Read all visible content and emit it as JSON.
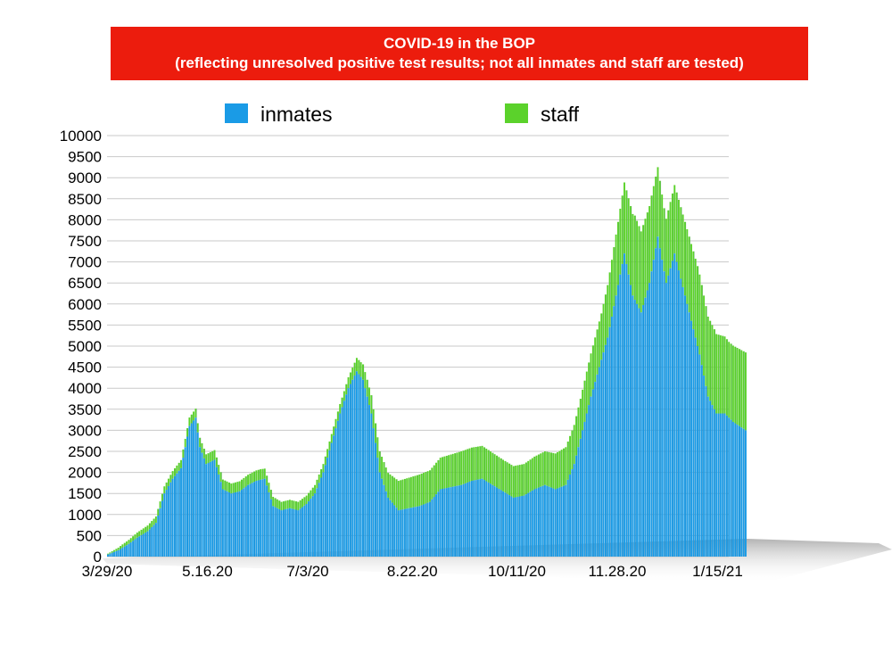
{
  "chart_data": {
    "type": "bar",
    "stacked": true,
    "title": "COVID-19 in the BOP",
    "subtitle": "(reflecting unresolved positive test results; not all inmates and staff are tested)",
    "legend_position": "top",
    "grid": true,
    "ylim": [
      0,
      10000
    ],
    "yticks": [
      "0",
      "500",
      "1000",
      "1500",
      "2000",
      "2500",
      "3000",
      "3500",
      "4000",
      "4500",
      "5000",
      "5500",
      "6000",
      "6500",
      "7000",
      "7500",
      "8000",
      "8500",
      "9000",
      "9500",
      "10000"
    ],
    "xticks": [
      "3/29/20",
      "5.16.20",
      "7/3/20",
      "8.22.20",
      "10/11/20",
      "11.28.20",
      "1/15/21"
    ],
    "x_start": "3/29/20",
    "x_end": "1/28/21",
    "series": [
      {
        "name": "inmates",
        "color": "#1a9be6",
        "points": [
          [
            "3/29/20",
            50
          ],
          [
            "4/3/20",
            150
          ],
          [
            "4/8/20",
            300
          ],
          [
            "4/12/20",
            450
          ],
          [
            "4/17/20",
            600
          ],
          [
            "4/21/20",
            800
          ],
          [
            "4/25/20",
            1500
          ],
          [
            "4/29/20",
            1850
          ],
          [
            "5/3/20",
            2100
          ],
          [
            "5/7/20",
            3100
          ],
          [
            "5/10/20",
            3300
          ],
          [
            "5/12/20",
            2600
          ],
          [
            "5/15/20",
            2200
          ],
          [
            "5/19/20",
            2300
          ],
          [
            "5/23/20",
            1600
          ],
          [
            "5/27/20",
            1500
          ],
          [
            "5/31/20",
            1550
          ],
          [
            "6/4/20",
            1700
          ],
          [
            "6/8/20",
            1800
          ],
          [
            "6/12/20",
            1850
          ],
          [
            "6/16/20",
            1200
          ],
          [
            "6/20/20",
            1100
          ],
          [
            "6/24/20",
            1150
          ],
          [
            "6/28/20",
            1100
          ],
          [
            "7/2/20",
            1250
          ],
          [
            "7/6/20",
            1500
          ],
          [
            "7/10/20",
            2000
          ],
          [
            "7/14/20",
            2700
          ],
          [
            "7/18/20",
            3400
          ],
          [
            "7/22/20",
            4000
          ],
          [
            "7/26/20",
            4400
          ],
          [
            "7/29/20",
            4200
          ],
          [
            "8/2/20",
            3400
          ],
          [
            "8/6/20",
            2000
          ],
          [
            "8/10/20",
            1400
          ],
          [
            "8/15/20",
            1100
          ],
          [
            "8/20/20",
            1150
          ],
          [
            "8/25/20",
            1200
          ],
          [
            "8/30/20",
            1300
          ],
          [
            "9/4/20",
            1600
          ],
          [
            "9/9/20",
            1650
          ],
          [
            "9/14/20",
            1700
          ],
          [
            "9/19/20",
            1800
          ],
          [
            "9/24/20",
            1850
          ],
          [
            "9/29/20",
            1700
          ],
          [
            "10/4/20",
            1550
          ],
          [
            "10/9/20",
            1400
          ],
          [
            "10/14/20",
            1450
          ],
          [
            "10/19/20",
            1600
          ],
          [
            "10/24/20",
            1700
          ],
          [
            "10/29/20",
            1600
          ],
          [
            "11/3/20",
            1700
          ],
          [
            "11/7/20",
            2200
          ],
          [
            "11/11/20",
            3000
          ],
          [
            "11/15/20",
            3800
          ],
          [
            "11/19/20",
            4500
          ],
          [
            "11/23/20",
            5200
          ],
          [
            "11/27/20",
            6200
          ],
          [
            "12/1/20",
            7200
          ],
          [
            "12/5/20",
            6200
          ],
          [
            "12/9/20",
            5800
          ],
          [
            "12/13/20",
            6500
          ],
          [
            "12/17/20",
            7600
          ],
          [
            "12/21/20",
            6500
          ],
          [
            "12/25/20",
            7200
          ],
          [
            "12/29/20",
            6400
          ],
          [
            "1/2/21",
            5600
          ],
          [
            "1/6/21",
            4800
          ],
          [
            "1/10/21",
            3800
          ],
          [
            "1/14/21",
            3400
          ],
          [
            "1/18/21",
            3400
          ],
          [
            "1/22/21",
            3200
          ],
          [
            "1/28/21",
            3000
          ]
        ]
      },
      {
        "name": "staff",
        "color": "#5bd22b",
        "points": [
          [
            "3/29/20",
            20
          ],
          [
            "4/5/20",
            80
          ],
          [
            "4/12/20",
            120
          ],
          [
            "4/20/20",
            150
          ],
          [
            "4/28/20",
            180
          ],
          [
            "5/6/20",
            200
          ],
          [
            "5/14/20",
            230
          ],
          [
            "5/22/20",
            230
          ],
          [
            "5/31/20",
            240
          ],
          [
            "6/10/20",
            250
          ],
          [
            "6/20/20",
            200
          ],
          [
            "6/30/20",
            200
          ],
          [
            "7/10/20",
            200
          ],
          [
            "7/20/20",
            230
          ],
          [
            "7/28/20",
            350
          ],
          [
            "8/6/20",
            500
          ],
          [
            "8/15/20",
            700
          ],
          [
            "8/25/20",
            750
          ],
          [
            "9/4/20",
            750
          ],
          [
            "9/14/20",
            800
          ],
          [
            "9/24/20",
            780
          ],
          [
            "10/4/20",
            750
          ],
          [
            "10/14/20",
            750
          ],
          [
            "10/24/20",
            800
          ],
          [
            "11/3/20",
            900
          ],
          [
            "11/10/20",
            950
          ],
          [
            "11/20/20",
            1100
          ],
          [
            "11/28/20",
            1500
          ],
          [
            "12/6/20",
            2000
          ],
          [
            "12/14/20",
            1800
          ],
          [
            "12/20/20",
            1500
          ],
          [
            "12/28/20",
            1700
          ],
          [
            "1/5/21",
            1900
          ],
          [
            "1/13/21",
            1900
          ],
          [
            "1/20/21",
            1800
          ],
          [
            "1/28/21",
            1850
          ]
        ]
      }
    ]
  }
}
